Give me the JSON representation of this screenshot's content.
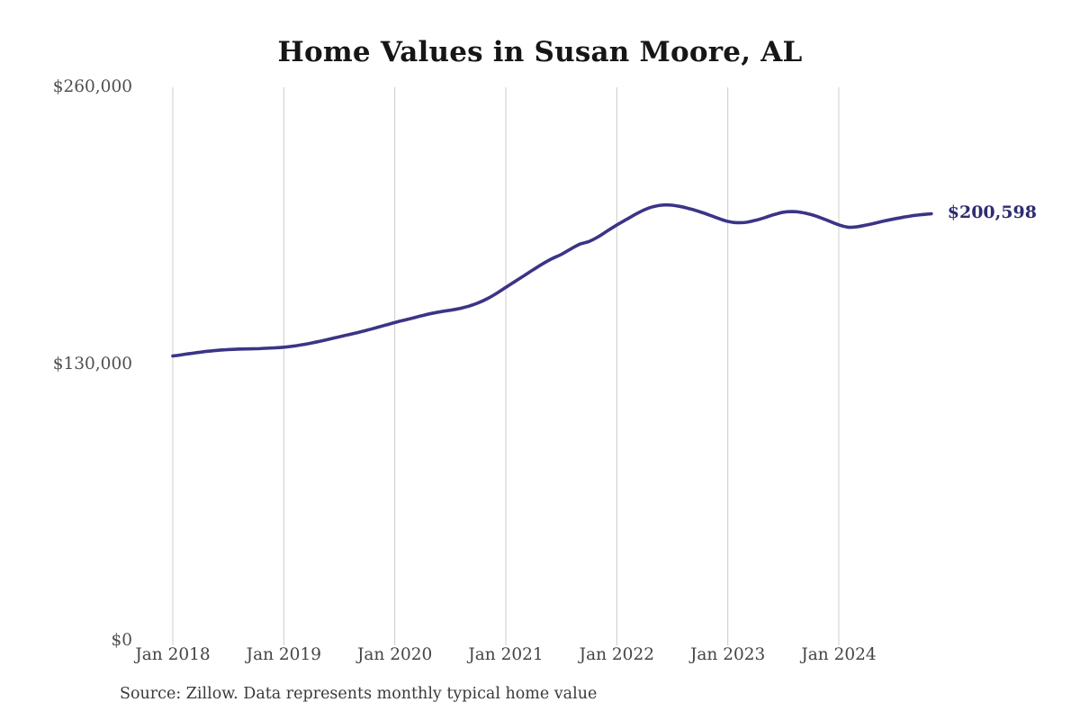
{
  "title": "Home Values in Susan Moore, AL",
  "source_note": "Source: Zillow. Data represents monthly typical home value",
  "chart_data": {
    "type": "line",
    "title": "Home Values in Susan Moore, AL",
    "series_name": "Monthly typical home value",
    "frequency": "monthly",
    "x_start": "Jan 2018",
    "x_end": "Nov 2024",
    "x_ticks": [
      "Jan 2018",
      "Jan 2019",
      "Jan 2020",
      "Jan 2021",
      "Jan 2022",
      "Jan 2023",
      "Jan 2024"
    ],
    "y_ticks": [
      {
        "label": "$0",
        "value": 0
      },
      {
        "label": "$130,000",
        "value": 130000
      },
      {
        "label": "$260,000",
        "value": 260000
      }
    ],
    "ylim": [
      0,
      260000
    ],
    "grid": "vertical-only",
    "legend": "none",
    "end_label": "$200,598",
    "end_value": 200598,
    "values": [
      133800,
      134400,
      135000,
      135600,
      136100,
      136500,
      136800,
      137000,
      137100,
      137200,
      137400,
      137600,
      137900,
      138400,
      139100,
      139900,
      140800,
      141800,
      142800,
      143800,
      144800,
      145900,
      147100,
      148300,
      149500,
      150600,
      151700,
      152800,
      153800,
      154600,
      155300,
      156100,
      157200,
      158700,
      160700,
      163200,
      166000,
      168800,
      171600,
      174400,
      177100,
      179500,
      181500,
      184000,
      186300,
      187600,
      189800,
      192600,
      195300,
      197800,
      200300,
      202500,
      204000,
      204700,
      204600,
      203900,
      202800,
      201500,
      200000,
      198400,
      197000,
      196400,
      196600,
      197500,
      198800,
      200200,
      201300,
      201600,
      201200,
      200200,
      198800,
      197100,
      195400,
      194300,
      194500,
      195300,
      196300,
      197300,
      198200,
      199000,
      199700,
      200200,
      200598
    ],
    "colors": {
      "line": "#3b3486",
      "end_label": "#2e2c72",
      "grid": "#cccccc",
      "tick_text": "#4a4a4a",
      "title_text": "#161616",
      "source_text": "#3a3a3a"
    }
  }
}
